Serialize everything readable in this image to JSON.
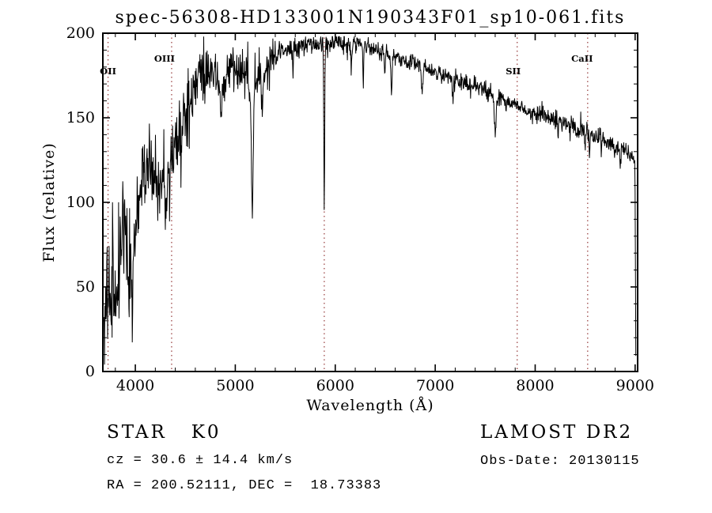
{
  "chart_data": {
    "type": "line",
    "title": "spec-56308-HD133001N190343F01_sp10-061.fits",
    "xlabel": "Wavelength (Å)",
    "ylabel": "Flux (relative)",
    "xlim": [
      3675,
      9025
    ],
    "ylim": [
      0,
      200
    ],
    "x_ticks": [
      4000,
      5000,
      6000,
      7000,
      8000,
      9000
    ],
    "y_ticks": [
      0,
      50,
      100,
      150,
      200
    ],
    "x_minor_step": 200,
    "y_minor_step": 10,
    "grid": false,
    "legend": "none",
    "line_color": "#000000",
    "marker_line_color": "#9c4646",
    "spectral_markers": [
      {
        "label": "OII",
        "wavelength": 3727,
        "level": "low",
        "label_dx": 0
      },
      {
        "label": "OIII",
        "wavelength": 4363,
        "level": "high",
        "label_dx": -9
      },
      {
        "label": "",
        "wavelength": 5890,
        "level": "high",
        "label_dx": 0
      },
      {
        "label": "SII",
        "wavelength": 7820,
        "level": "low",
        "label_dx": -5
      },
      {
        "label": "CaII",
        "wavelength": 8525,
        "level": "high",
        "label_dx": -7
      }
    ],
    "spectrum": {
      "n_points": 1400,
      "noise_seed": 77,
      "wavelength_range": [
        3688,
        9007
      ],
      "continuum": [
        [
          3688,
          12
        ],
        [
          3700,
          30
        ],
        [
          3715,
          45
        ],
        [
          3730,
          38
        ],
        [
          3745,
          50
        ],
        [
          3760,
          42
        ],
        [
          3780,
          52
        ],
        [
          3800,
          58
        ],
        [
          3830,
          68
        ],
        [
          3860,
          80
        ],
        [
          3890,
          78
        ],
        [
          3915,
          70
        ],
        [
          3945,
          66
        ],
        [
          3975,
          78
        ],
        [
          4005,
          92
        ],
        [
          4040,
          102
        ],
        [
          4080,
          112
        ],
        [
          4120,
          118
        ],
        [
          4160,
          120
        ],
        [
          4200,
          116
        ],
        [
          4260,
          112
        ],
        [
          4320,
          120
        ],
        [
          4380,
          130
        ],
        [
          4440,
          142
        ],
        [
          4500,
          155
        ],
        [
          4560,
          164
        ],
        [
          4620,
          170
        ],
        [
          4680,
          174
        ],
        [
          4740,
          177
        ],
        [
          4800,
          173
        ],
        [
          4860,
          168
        ],
        [
          4920,
          177
        ],
        [
          4980,
          182
        ],
        [
          5040,
          179
        ],
        [
          5100,
          174
        ],
        [
          5160,
          166
        ],
        [
          5220,
          170
        ],
        [
          5280,
          177
        ],
        [
          5340,
          183
        ],
        [
          5400,
          187
        ],
        [
          5500,
          190
        ],
        [
          5600,
          192
        ],
        [
          5700,
          193
        ],
        [
          5800,
          194
        ],
        [
          5900,
          193
        ],
        [
          6000,
          195
        ],
        [
          6100,
          194
        ],
        [
          6250,
          193
        ],
        [
          6400,
          190
        ],
        [
          6550,
          187
        ],
        [
          6700,
          184
        ],
        [
          6850,
          181
        ],
        [
          7000,
          177
        ],
        [
          7150,
          174
        ],
        [
          7300,
          171
        ],
        [
          7450,
          168
        ],
        [
          7600,
          163
        ],
        [
          7750,
          159
        ],
        [
          7900,
          155
        ],
        [
          8050,
          152
        ],
        [
          8200,
          149
        ],
        [
          8350,
          146
        ],
        [
          8500,
          142
        ],
        [
          8650,
          138
        ],
        [
          8800,
          133
        ],
        [
          8900,
          130
        ],
        [
          8985,
          127
        ],
        [
          8998,
          120
        ],
        [
          9002,
          85
        ],
        [
          9005,
          35
        ],
        [
          9007,
          8
        ]
      ],
      "noise_sigma": [
        [
          3688,
          16
        ],
        [
          3800,
          19
        ],
        [
          3900,
          17
        ],
        [
          4000,
          14
        ],
        [
          4150,
          13
        ],
        [
          4300,
          13
        ],
        [
          4450,
          12
        ],
        [
          4600,
          9
        ],
        [
          4750,
          8
        ],
        [
          4900,
          7
        ],
        [
          5050,
          7
        ],
        [
          5200,
          7
        ],
        [
          5350,
          5
        ],
        [
          5500,
          4
        ],
        [
          5650,
          3.5
        ],
        [
          5800,
          3
        ],
        [
          6000,
          3
        ],
        [
          6300,
          2.5
        ],
        [
          6600,
          2.5
        ],
        [
          7000,
          2.5
        ],
        [
          7400,
          2.8
        ],
        [
          7800,
          3
        ],
        [
          8200,
          3
        ],
        [
          8600,
          3.2
        ],
        [
          8950,
          2.5
        ],
        [
          9007,
          2
        ]
      ],
      "absorption_features": [
        [
          3933,
          25,
          7
        ],
        [
          3968,
          20,
          7
        ],
        [
          4101,
          16,
          6
        ],
        [
          4227,
          22,
          5
        ],
        [
          4305,
          26,
          10
        ],
        [
          4340,
          28,
          5
        ],
        [
          4383,
          25,
          4
        ],
        [
          4455,
          20,
          4
        ],
        [
          4861,
          22,
          6
        ],
        [
          5170,
          70,
          9
        ],
        [
          5270,
          22,
          7
        ],
        [
          5577,
          18,
          4
        ],
        [
          5890,
          100,
          4
        ],
        [
          6160,
          12,
          6
        ],
        [
          6280,
          22,
          4
        ],
        [
          6495,
          14,
          5
        ],
        [
          6563,
          26,
          5
        ],
        [
          6870,
          16,
          7
        ],
        [
          7180,
          10,
          7
        ],
        [
          7600,
          20,
          9
        ],
        [
          8230,
          8,
          6
        ],
        [
          8498,
          11,
          4
        ],
        [
          8542,
          14,
          4
        ],
        [
          8662,
          12,
          4
        ],
        [
          8850,
          8,
          5
        ]
      ]
    }
  },
  "annotations": {
    "class_line": "STAR   K0",
    "survey": "LAMOST DR2",
    "cz_line": "cz = 30.6 ± 14.4 km/s",
    "obs_date_line": "Obs-Date: 20130115",
    "radec_line": "RA = 200.52111, DEC =  18.73383"
  }
}
